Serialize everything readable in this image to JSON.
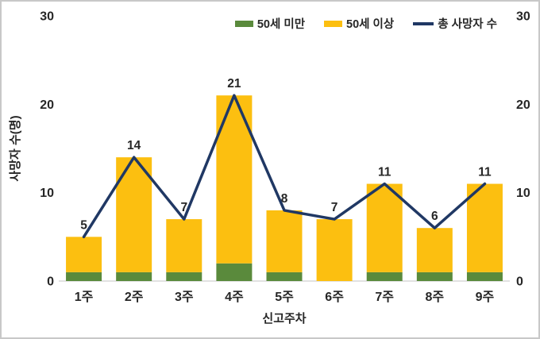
{
  "chart_data": {
    "type": "bar",
    "subtype": "stacked-bars-with-total-line-overlay",
    "title": "",
    "categories": [
      "1주",
      "2주",
      "3주",
      "4주",
      "5주",
      "6주",
      "7주",
      "8주",
      "9주"
    ],
    "series": [
      {
        "name": "50세 미만",
        "kind": "bar",
        "color": "#5A8A3C",
        "values": [
          1,
          1,
          1,
          2,
          1,
          0,
          1,
          1,
          1
        ]
      },
      {
        "name": "50세 이상",
        "kind": "bar",
        "color": "#FCBF10",
        "values": [
          4,
          13,
          6,
          19,
          7,
          7,
          10,
          5,
          10
        ]
      },
      {
        "name": "총 사망자 수",
        "kind": "line",
        "color": "#203864",
        "values": [
          5,
          14,
          7,
          21,
          8,
          7,
          11,
          6,
          11
        ]
      }
    ],
    "stacked": true,
    "data_labels": [
      5,
      14,
      7,
      21,
      8,
      7,
      11,
      6,
      11
    ],
    "xlabel": "신고주차",
    "ylabel": "사망자 수(명)",
    "ylim": [
      0,
      30
    ],
    "yticks": [
      0,
      10,
      20,
      30
    ],
    "dual_axis": true,
    "grid": false,
    "legend_position": "top-right"
  },
  "colors": {
    "under50_green": "#5A8A3C",
    "over50_yellow": "#FCBF10",
    "total_line_navy": "#203864",
    "text": "#262626",
    "baseline": "#D9D9D9",
    "frame_border": "#C8C8C8",
    "background": "#FFFFFF"
  }
}
